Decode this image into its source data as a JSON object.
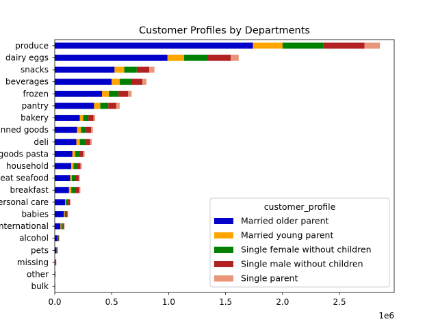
{
  "chart_data": {
    "type": "bar",
    "orientation": "horizontal",
    "stacked": true,
    "title": "Customer Profiles by Departments",
    "xlabel": "",
    "ylabel": "",
    "x_offset_label": "1e6",
    "xlim": [
      0,
      2.98
    ],
    "x_ticks": [
      0,
      0.5,
      1.0,
      1.5,
      2.0,
      2.5
    ],
    "x_tick_labels": [
      "0.0",
      "0.5",
      "1.0",
      "1.5",
      "2.0",
      "2.5"
    ],
    "grid": false,
    "legend": {
      "title": "customer_profile",
      "placement": "lower-right"
    },
    "categories": [
      "produce",
      "dairy eggs",
      "snacks",
      "beverages",
      "frozen",
      "pantry",
      "bakery",
      "canned goods",
      "deli",
      "dry goods pasta",
      "household",
      "meat seafood",
      "breakfast",
      "personal care",
      "babies",
      "international",
      "alcohol",
      "pets",
      "missing",
      "other",
      "bulk"
    ],
    "series": [
      {
        "name": "Married older parent",
        "color": "#0000c8",
        "values": [
          1.74,
          0.99,
          0.525,
          0.5,
          0.415,
          0.345,
          0.22,
          0.195,
          0.19,
          0.155,
          0.145,
          0.135,
          0.125,
          0.09,
          0.08,
          0.05,
          0.025,
          0.015,
          0.008,
          0.004,
          0.003
        ]
      },
      {
        "name": "Married young parent",
        "color": "#ffa500",
        "values": [
          0.26,
          0.145,
          0.085,
          0.07,
          0.06,
          0.055,
          0.03,
          0.035,
          0.03,
          0.025,
          0.02,
          0.015,
          0.02,
          0.008,
          0.008,
          0.008,
          0.003,
          0.002,
          0.001,
          0.001,
          0.0005
        ]
      },
      {
        "name": "Single female without children",
        "color": "#008000",
        "values": [
          0.36,
          0.205,
          0.11,
          0.1,
          0.085,
          0.07,
          0.045,
          0.045,
          0.045,
          0.035,
          0.03,
          0.03,
          0.035,
          0.018,
          0.012,
          0.012,
          0.005,
          0.004,
          0.002,
          0.001,
          0.0005
        ]
      },
      {
        "name": "Single male without children",
        "color": "#b22222",
        "values": [
          0.36,
          0.205,
          0.11,
          0.1,
          0.085,
          0.07,
          0.045,
          0.045,
          0.045,
          0.035,
          0.03,
          0.03,
          0.035,
          0.018,
          0.012,
          0.012,
          0.005,
          0.004,
          0.002,
          0.001,
          0.0005
        ]
      },
      {
        "name": "Single parent",
        "color": "#e9967a",
        "values": [
          0.135,
          0.07,
          0.045,
          0.035,
          0.03,
          0.03,
          0.015,
          0.015,
          0.015,
          0.012,
          0.012,
          0.01,
          0.01,
          0.005,
          0.005,
          0.004,
          0.002,
          0.001,
          0.001,
          0.0005,
          0.0005
        ]
      }
    ]
  }
}
